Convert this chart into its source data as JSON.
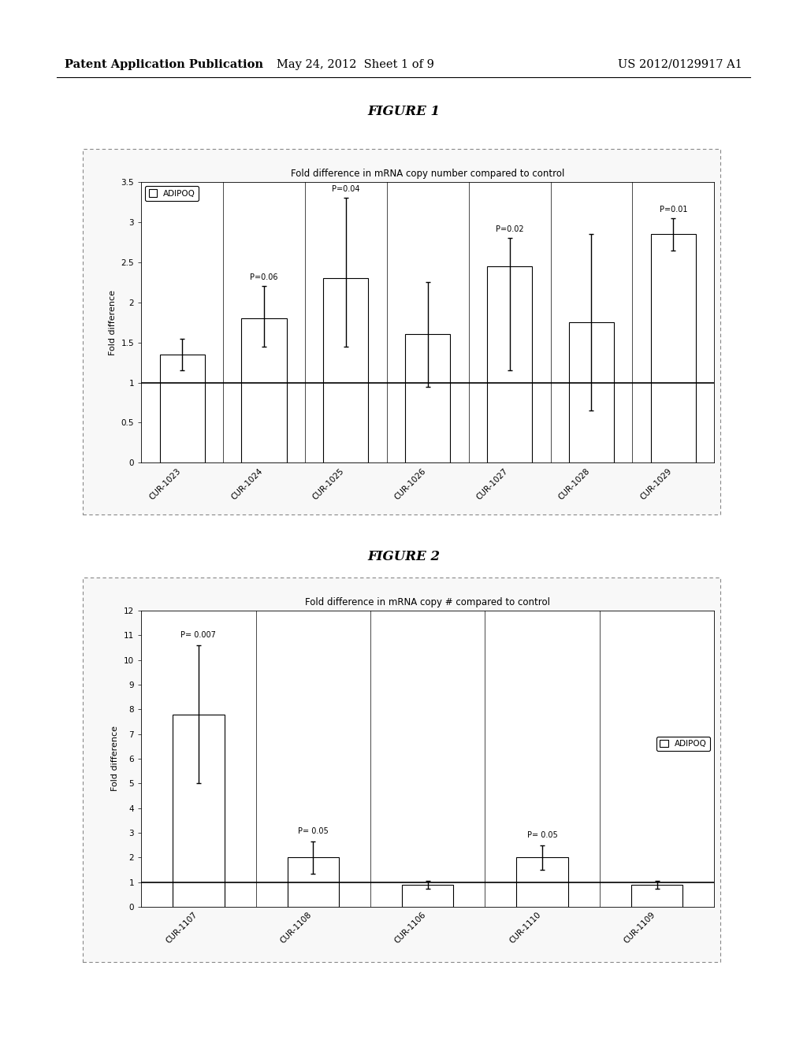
{
  "fig1": {
    "title": "FIGURE 1",
    "chart_title": "Fold difference in mRNA copy number compared to control",
    "ylabel": "Fold difference",
    "categories": [
      "CUR-1023",
      "CUR-1024",
      "CUR-1025",
      "CUR-1026",
      "CUR-1027",
      "CUR-1028",
      "CUR-1029"
    ],
    "values": [
      1.35,
      1.8,
      2.3,
      1.6,
      2.45,
      1.75,
      2.85
    ],
    "errors_pos": [
      0.2,
      0.4,
      1.0,
      0.65,
      0.35,
      1.1,
      0.2
    ],
    "errors_neg": [
      0.2,
      0.35,
      0.85,
      0.65,
      1.3,
      1.1,
      0.2
    ],
    "p_values": [
      "",
      "P=0.06",
      "P=0.04",
      "",
      "P=0.02",
      "",
      "P=0.01"
    ],
    "ylim": [
      0,
      3.5
    ],
    "yticks": [
      0,
      0.5,
      1.0,
      1.5,
      2.0,
      2.5,
      3.0,
      3.5
    ],
    "ytick_labels": [
      "0",
      "0.5",
      "1",
      "1.5",
      "2",
      "2.5",
      "3",
      "3.5"
    ],
    "legend_label": "ADIPOQ",
    "bar_color": "white",
    "bar_edge_color": "black",
    "hline_y": 1.0,
    "bar_width": 0.55
  },
  "fig2": {
    "title": "FIGURE 2",
    "chart_title": "Fold difference in mRNA copy # compared to control",
    "ylabel": "Fold difference",
    "categories": [
      "CUR-1107",
      "CUR-1108",
      "CUR-1106",
      "CUR-1110",
      "CUR-1109"
    ],
    "values": [
      7.8,
      2.0,
      0.9,
      2.0,
      0.9
    ],
    "errors_pos": [
      2.8,
      0.65,
      0.15,
      0.5,
      0.15
    ],
    "errors_neg": [
      2.8,
      0.65,
      0.15,
      0.5,
      0.15
    ],
    "p_values": [
      "P= 0.007",
      "P= 0.05",
      "",
      "P= 0.05",
      ""
    ],
    "ylim": [
      0,
      12
    ],
    "yticks": [
      0,
      1,
      2,
      3,
      4,
      5,
      6,
      7,
      8,
      9,
      10,
      11,
      12
    ],
    "ytick_labels": [
      "0",
      "1",
      "2",
      "3",
      "4",
      "5",
      "6",
      "7",
      "8",
      "9",
      "10",
      "11",
      "12"
    ],
    "legend_label": "ADIPOQ",
    "bar_color": "white",
    "bar_edge_color": "black",
    "hline_y": 1.0,
    "bar_width": 0.45
  },
  "page_header_left": "Patent Application Publication",
  "page_header_mid": "May 24, 2012  Sheet 1 of 9",
  "page_header_right": "US 2012/0129917 A1",
  "bg_color": "#ffffff"
}
